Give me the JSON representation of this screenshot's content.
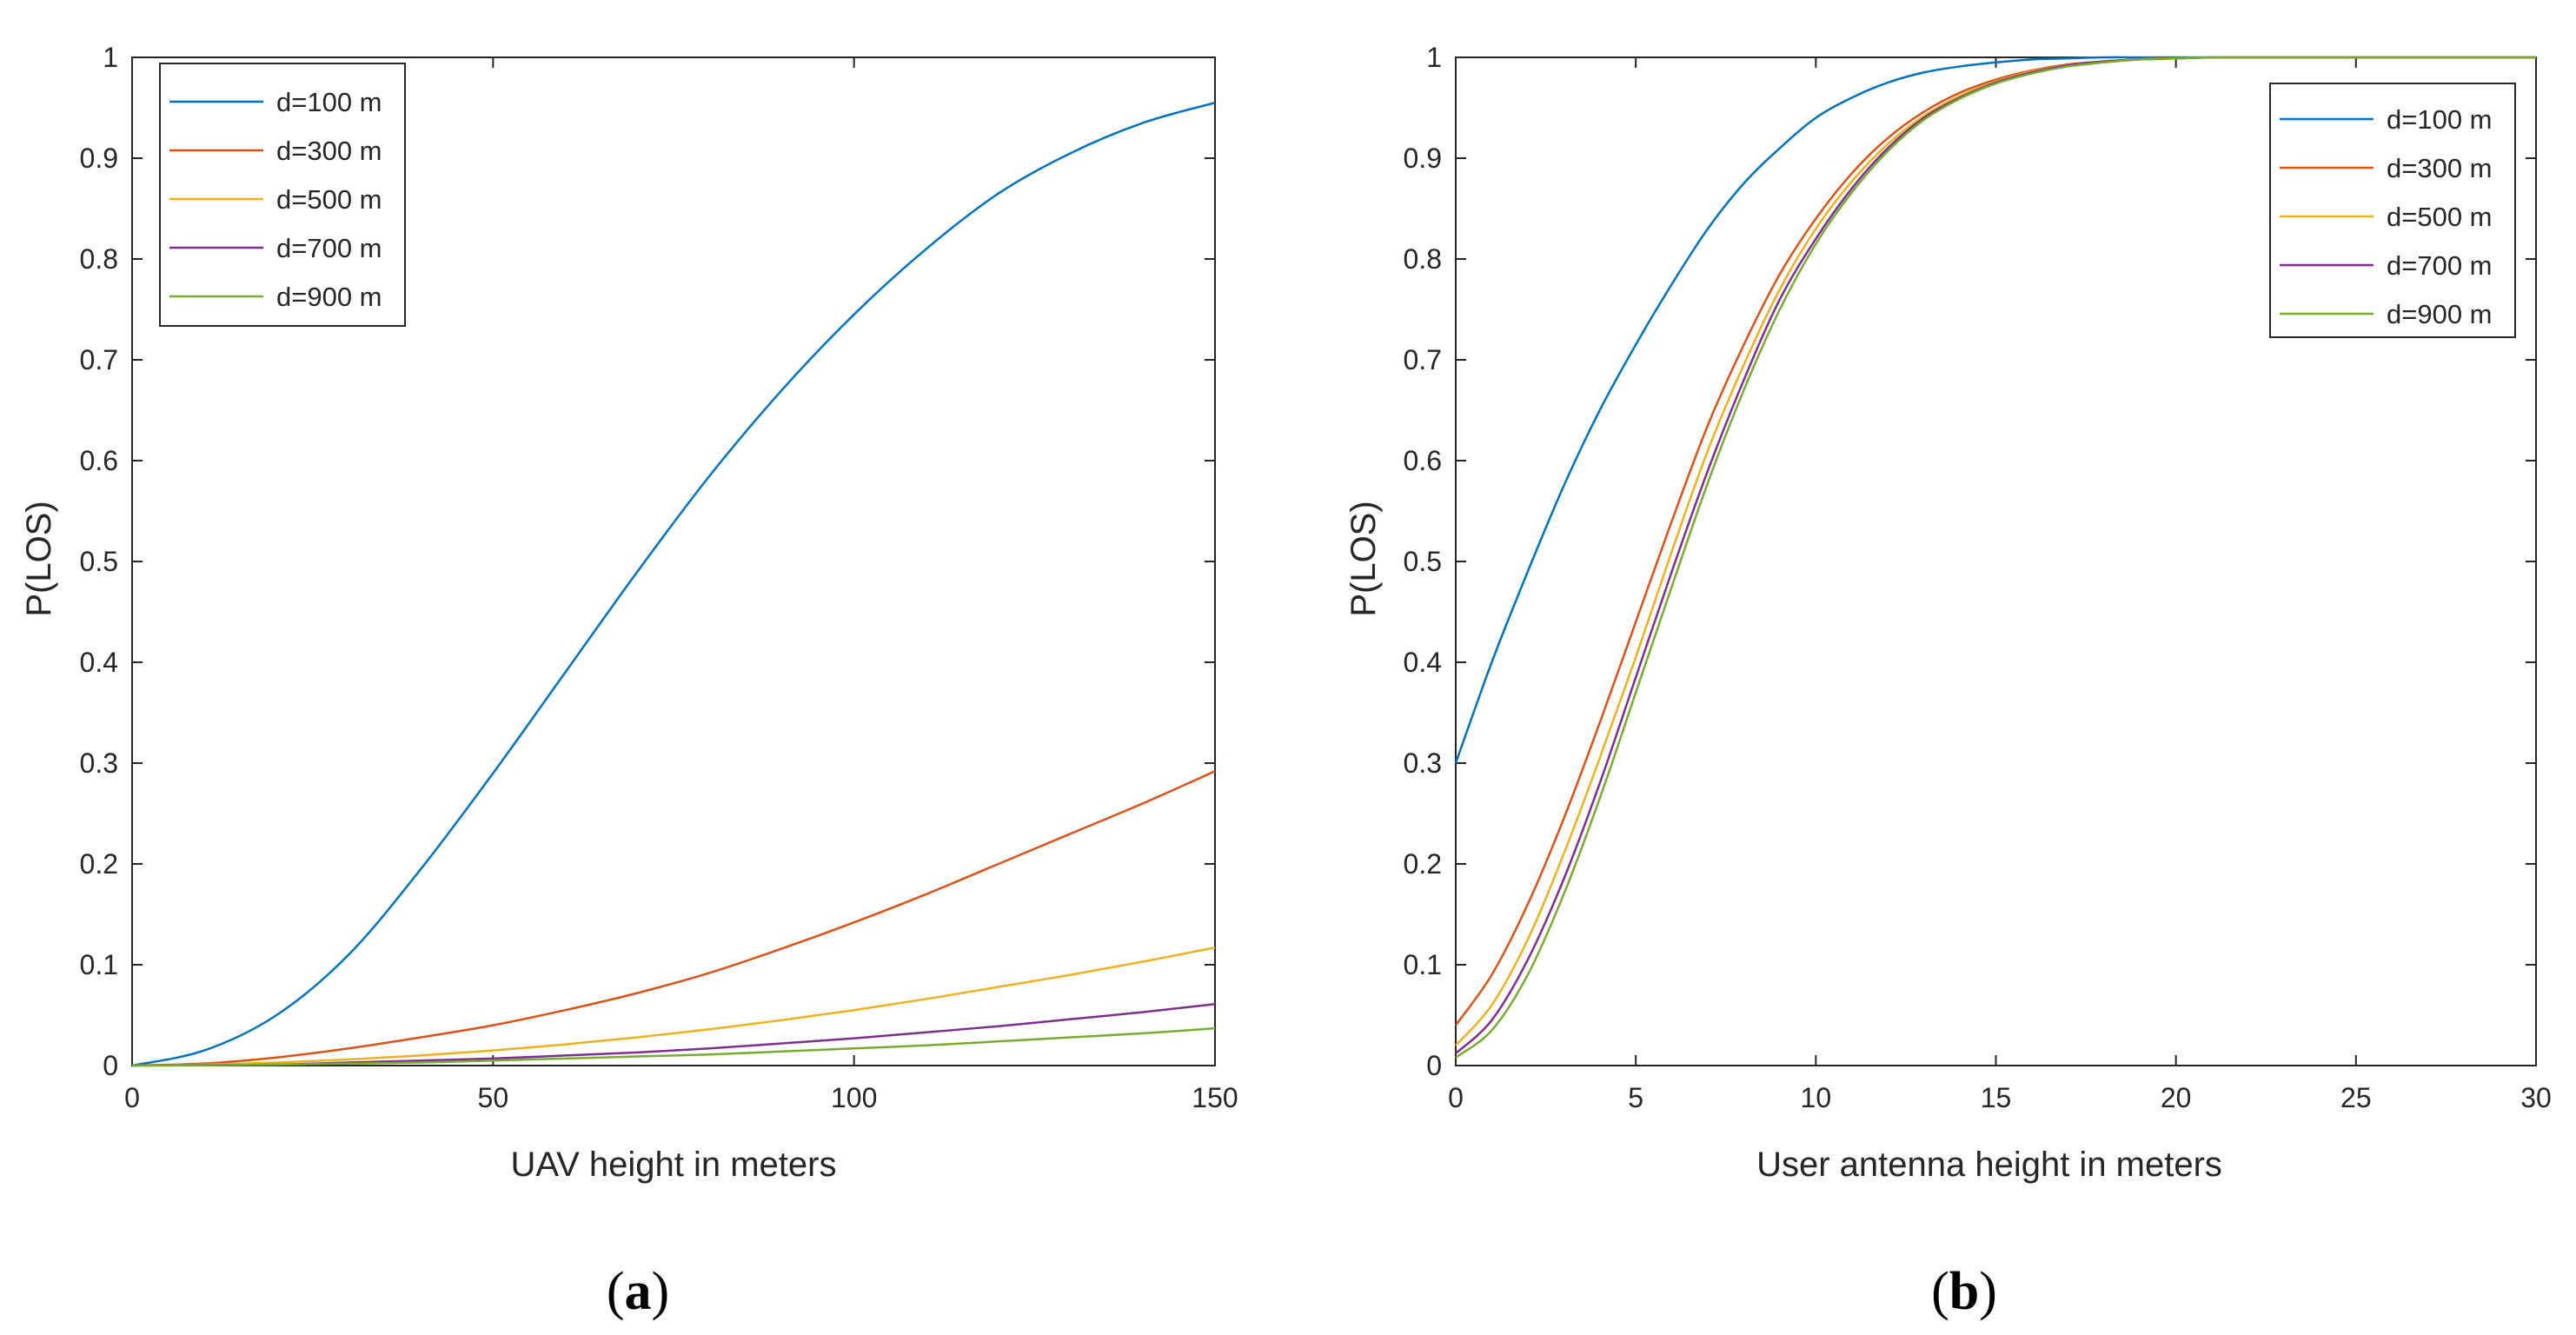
{
  "chart_data": [
    {
      "type": "line",
      "panel_label": "(a)",
      "panel_letter": "a",
      "title": "",
      "xlabel": "UAV height in meters",
      "ylabel": "P(LOS)",
      "xlim": [
        0,
        150
      ],
      "ylim": [
        0,
        1
      ],
      "xticks": [
        0,
        50,
        100,
        150
      ],
      "xtick_labels": [
        "0",
        "50",
        "100",
        "150"
      ],
      "yticks": [
        0,
        0.1,
        0.2,
        0.3,
        0.4,
        0.5,
        0.6,
        0.7,
        0.8,
        0.9,
        1
      ],
      "ytick_labels": [
        "0",
        "0.1",
        "0.2",
        "0.3",
        "0.4",
        "0.5",
        "0.6",
        "0.7",
        "0.8",
        "0.9",
        "1"
      ],
      "grid": false,
      "legend_position": "top-left",
      "x": [
        0,
        10,
        20,
        30,
        40,
        50,
        60,
        70,
        80,
        90,
        100,
        110,
        120,
        130,
        140,
        150
      ],
      "series": [
        {
          "name": "d=100 m",
          "color": "#0072BD",
          "values": [
            0.0,
            0.015,
            0.05,
            0.11,
            0.195,
            0.29,
            0.39,
            0.49,
            0.585,
            0.67,
            0.745,
            0.81,
            0.865,
            0.905,
            0.935,
            0.955
          ]
        },
        {
          "name": "d=300 m",
          "color": "#D95319",
          "values": [
            0.0,
            0.002,
            0.008,
            0.017,
            0.028,
            0.04,
            0.055,
            0.072,
            0.092,
            0.116,
            0.142,
            0.17,
            0.2,
            0.23,
            0.26,
            0.292
          ]
        },
        {
          "name": "d=500 m",
          "color": "#EDB120",
          "values": [
            0.0,
            0.001,
            0.003,
            0.006,
            0.01,
            0.015,
            0.021,
            0.028,
            0.036,
            0.045,
            0.055,
            0.066,
            0.078,
            0.09,
            0.103,
            0.117
          ]
        },
        {
          "name": "d=700 m",
          "color": "#7E2F8E",
          "values": [
            0.0,
            0.0005,
            0.001,
            0.003,
            0.005,
            0.007,
            0.01,
            0.013,
            0.017,
            0.022,
            0.027,
            0.033,
            0.039,
            0.046,
            0.053,
            0.061
          ]
        },
        {
          "name": "d=900 m",
          "color": "#77AC30",
          "values": [
            0.0,
            0.0003,
            0.001,
            0.002,
            0.003,
            0.005,
            0.007,
            0.009,
            0.011,
            0.014,
            0.017,
            0.02,
            0.024,
            0.028,
            0.032,
            0.037
          ]
        }
      ]
    },
    {
      "type": "line",
      "panel_label": "(b)",
      "panel_letter": "b",
      "title": "",
      "xlabel": "User antenna height in meters",
      "ylabel": "P(LOS)",
      "xlim": [
        0,
        30
      ],
      "ylim": [
        0,
        1
      ],
      "xticks": [
        0,
        5,
        10,
        15,
        20,
        25,
        30
      ],
      "xtick_labels": [
        "0",
        "5",
        "10",
        "15",
        "20",
        "25",
        "30"
      ],
      "yticks": [
        0,
        0.1,
        0.2,
        0.3,
        0.4,
        0.5,
        0.6,
        0.7,
        0.8,
        0.9,
        1
      ],
      "ytick_labels": [
        "0",
        "0.1",
        "0.2",
        "0.3",
        "0.4",
        "0.5",
        "0.6",
        "0.7",
        "0.8",
        "0.9",
        "1"
      ],
      "grid": false,
      "legend_position": "top-right",
      "x": [
        0,
        1,
        2,
        3,
        4,
        5,
        6,
        7,
        8,
        9,
        10,
        11,
        12,
        13,
        14,
        15,
        16,
        17,
        18,
        19,
        20,
        21,
        22,
        25,
        30
      ],
      "series": [
        {
          "name": "d=100 m",
          "color": "#0072BD",
          "values": [
            0.3,
            0.4,
            0.49,
            0.575,
            0.65,
            0.715,
            0.775,
            0.83,
            0.875,
            0.91,
            0.94,
            0.96,
            0.975,
            0.985,
            0.991,
            0.995,
            0.998,
            0.999,
            1.0,
            1.0,
            1.0,
            1.0,
            1.0,
            1.0,
            1.0
          ]
        },
        {
          "name": "d=300 m",
          "color": "#D95319",
          "values": [
            0.04,
            0.09,
            0.16,
            0.245,
            0.34,
            0.44,
            0.54,
            0.635,
            0.715,
            0.785,
            0.84,
            0.885,
            0.92,
            0.946,
            0.965,
            0.978,
            0.987,
            0.993,
            0.996,
            0.998,
            0.999,
            1.0,
            1.0,
            1.0,
            1.0
          ]
        },
        {
          "name": "d=500 m",
          "color": "#EDB120",
          "values": [
            0.02,
            0.06,
            0.125,
            0.21,
            0.305,
            0.405,
            0.51,
            0.61,
            0.695,
            0.77,
            0.83,
            0.877,
            0.914,
            0.942,
            0.962,
            0.976,
            0.986,
            0.992,
            0.996,
            0.998,
            0.999,
            1.0,
            1.0,
            1.0,
            1.0
          ]
        },
        {
          "name": "d=700 m",
          "color": "#7E2F8E",
          "values": [
            0.012,
            0.045,
            0.105,
            0.185,
            0.28,
            0.385,
            0.49,
            0.59,
            0.68,
            0.76,
            0.82,
            0.87,
            0.91,
            0.94,
            0.96,
            0.975,
            0.985,
            0.992,
            0.996,
            0.998,
            0.999,
            1.0,
            1.0,
            1.0,
            1.0
          ]
        },
        {
          "name": "d=900 m",
          "color": "#77AC30",
          "values": [
            0.008,
            0.035,
            0.09,
            0.17,
            0.265,
            0.37,
            0.475,
            0.578,
            0.67,
            0.75,
            0.815,
            0.866,
            0.907,
            0.938,
            0.959,
            0.974,
            0.984,
            0.991,
            0.995,
            0.998,
            0.999,
            1.0,
            1.0,
            1.0,
            1.0
          ]
        }
      ]
    }
  ]
}
